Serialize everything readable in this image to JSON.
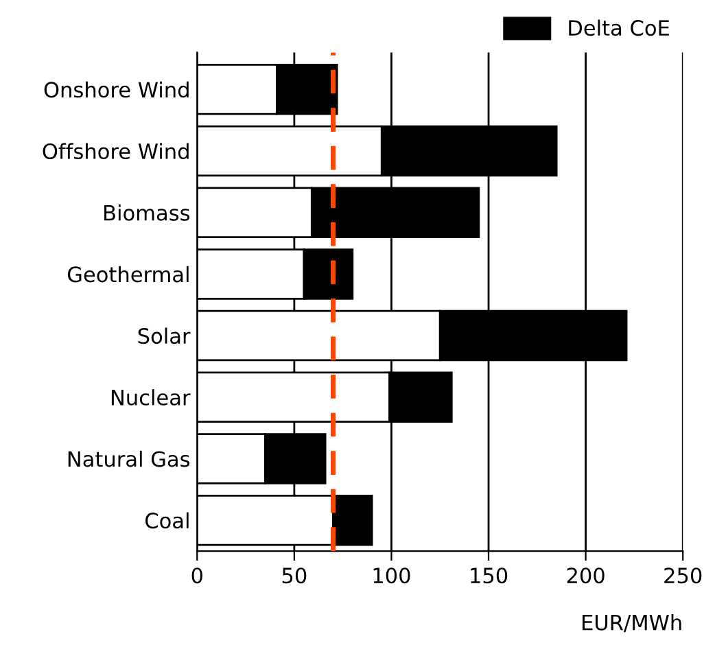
{
  "chart_data": {
    "type": "bar",
    "orientation": "horizontal",
    "stacked": true,
    "categories": [
      "Onshore Wind",
      "Offshore Wind",
      "Biomass",
      "Geothermal",
      "Solar",
      "Nuclear",
      "Natural Gas",
      "Coal"
    ],
    "series": [
      {
        "color": "#ffffff",
        "values": [
          41,
          95,
          59,
          55,
          125,
          99,
          35,
          70
        ]
      },
      {
        "name": "Delta CoE",
        "color": "#000000",
        "values": [
          31,
          90,
          86,
          25,
          96,
          32,
          31,
          20
        ]
      }
    ],
    "xlim": [
      0,
      250
    ],
    "xticks": [
      0,
      50,
      100,
      150,
      200,
      250
    ],
    "xlabel": "EUR/MWh",
    "grid": "x",
    "legend": "top right",
    "ref_lines": [
      {
        "axis": "x",
        "value": 70,
        "color": "#ff4500",
        "line_style": "dashed"
      }
    ]
  }
}
